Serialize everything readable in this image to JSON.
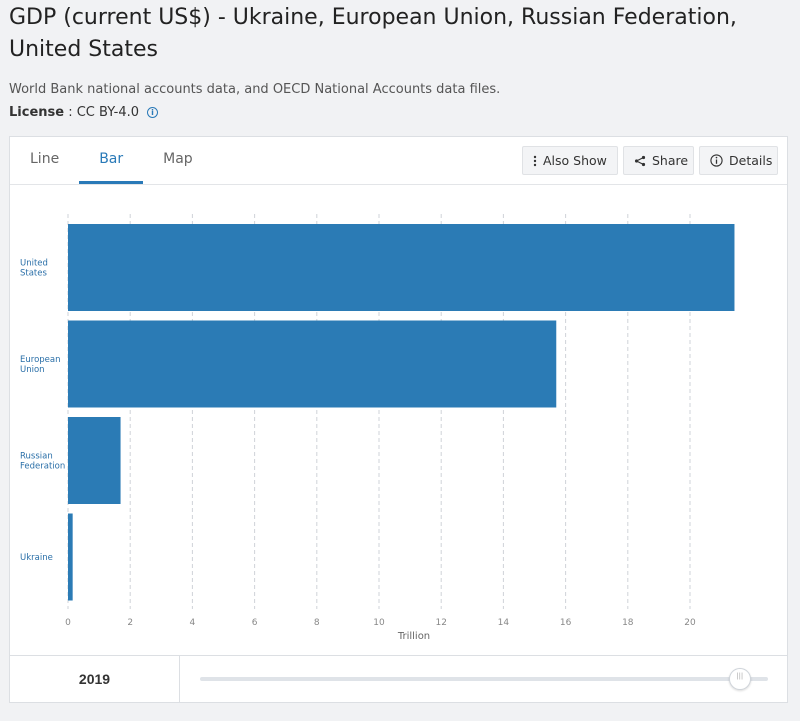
{
  "header": {
    "title": "GDP (current US$) - Ukraine, European Union, Russian Federation, United States",
    "source": "World Bank national accounts data, and OECD National Accounts data files.",
    "license_label": "License",
    "license_sep": " : ",
    "license_value": "CC BY-4.0"
  },
  "tabs": [
    {
      "label": "Line"
    },
    {
      "label": "Bar"
    },
    {
      "label": "Map"
    }
  ],
  "toolbar": {
    "also_show": "Also Show",
    "share": "Share",
    "details": "Details"
  },
  "footer": {
    "year": "2019"
  },
  "chart_data": {
    "type": "bar",
    "orientation": "horizontal",
    "categories": [
      [
        "United",
        "States"
      ],
      [
        "European",
        "Union"
      ],
      [
        "Russian",
        "Federation"
      ],
      [
        "Ukraine"
      ]
    ],
    "values": [
      21.43,
      15.7,
      1.69,
      0.15
    ],
    "xlabel": "Trillion",
    "xlim": [
      0,
      22
    ],
    "xticks": [
      "0",
      "2",
      "4",
      "6",
      "8",
      "10",
      "12",
      "14",
      "16",
      "18",
      "20"
    ],
    "grid": true,
    "bar_color": "#2b7bb5"
  }
}
